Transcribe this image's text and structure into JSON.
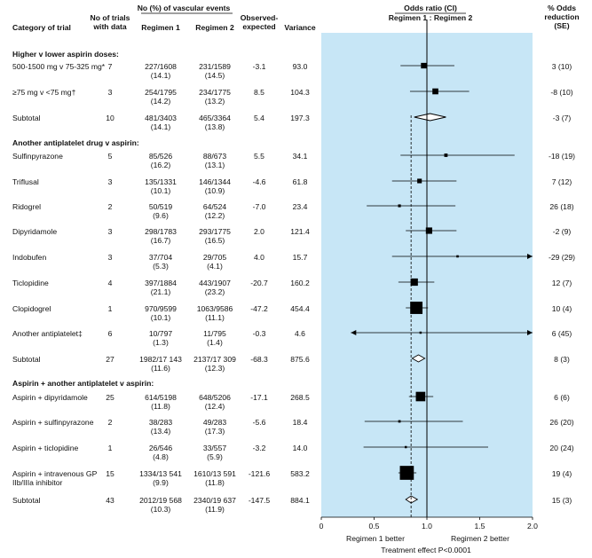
{
  "headers": {
    "category": "Category of trial",
    "trials": "No of trials\nwith data",
    "events_group": "No (%) of vascular events",
    "regimen1": "Regimen 1",
    "regimen2": "Regimen 2",
    "oe": "Observed-\nexpected",
    "variance": "Variance",
    "or_title": "Odds ratio (CI)",
    "or_sub": "Regimen 1 : Regimen 2",
    "reduction": "% Odds\nreduction\n(SE)"
  },
  "sections": [
    {
      "title": "Higher v lower aspirin doses:",
      "rows": [
        {
          "label": "500-1500 mg v 75-325 mg*",
          "trials": "7",
          "r1": "227/1608",
          "r1p": "(14.1)",
          "r2": "231/1589",
          "r2p": "(14.5)",
          "oe": "-3.1",
          "var": "93.0",
          "red": "3 (10)"
        },
        {
          "label": "≥75 mg v <75 mg†",
          "trials": "3",
          "r1": "254/1795",
          "r1p": "(14.2)",
          "r2": "234/1775",
          "r2p": "(13.2)",
          "oe": "8.5",
          "var": "104.3",
          "red": "-8 (10)"
        },
        {
          "label": "Subtotal",
          "trials": "10",
          "r1": "481/3403",
          "r1p": "(14.1)",
          "r2": "465/3364",
          "r2p": "(13.8)",
          "oe": "5.4",
          "var": "197.3",
          "red": "-3 (7)",
          "subtotal": true
        }
      ]
    },
    {
      "title": "Another antiplatelet drug v aspirin:",
      "rows": [
        {
          "label": "Sulfinpyrazone",
          "trials": "5",
          "r1": "85/526",
          "r1p": "(16.2)",
          "r2": "88/673",
          "r2p": "(13.1)",
          "oe": "5.5",
          "var": "34.1",
          "red": "-18 (19)"
        },
        {
          "label": "Triflusal",
          "trials": "3",
          "r1": "135/1331",
          "r1p": "(10.1)",
          "r2": "146/1344",
          "r2p": "(10.9)",
          "oe": "-4.6",
          "var": "61.8",
          "red": "7 (12)"
        },
        {
          "label": "Ridogrel",
          "trials": "2",
          "r1": "50/519",
          "r1p": "(9.6)",
          "r2": "64/524",
          "r2p": "(12.2)",
          "oe": "-7.0",
          "var": "23.4",
          "red": "26 (18)"
        },
        {
          "label": "Dipyridamole",
          "trials": "3",
          "r1": "298/1783",
          "r1p": "(16.7)",
          "r2": "293/1775",
          "r2p": "(16.5)",
          "oe": "2.0",
          "var": "121.4",
          "red": "-2 (9)"
        },
        {
          "label": "Indobufen",
          "trials": "3",
          "r1": "37/704",
          "r1p": "(5.3)",
          "r2": "29/705",
          "r2p": "(4.1)",
          "oe": "4.0",
          "var": "15.7",
          "red": "-29 (29)"
        },
        {
          "label": "Ticlopidine",
          "trials": "4",
          "r1": "397/1884",
          "r1p": "(21.1)",
          "r2": "443/1907",
          "r2p": "(23.2)",
          "oe": "-20.7",
          "var": "160.2",
          "red": "12 (7)"
        },
        {
          "label": "Clopidogrel",
          "trials": "1",
          "r1": "970/9599",
          "r1p": "(10.1)",
          "r2": "1063/9586",
          "r2p": "(11.1)",
          "oe": "-47.2",
          "var": "454.4",
          "red": "10 (4)"
        },
        {
          "label": "Another antiplatelet‡",
          "trials": "6",
          "r1": "10/797",
          "r1p": "(1.3)",
          "r2": "11/795",
          "r2p": "(1.4)",
          "oe": "-0.3",
          "var": "4.6",
          "red": "6 (45)"
        },
        {
          "label": "Subtotal",
          "trials": "27",
          "r1": "1982/17 143",
          "r1p": "(11.6)",
          "r2": "2137/17 309",
          "r2p": "(12.3)",
          "oe": "-68.3",
          "var": "875.6",
          "red": "8 (3)",
          "subtotal": true
        }
      ]
    },
    {
      "title": "Aspirin + another antiplatelet v aspirin:",
      "rows": [
        {
          "label": "Aspirin + dipyridamole",
          "trials": "25",
          "r1": "614/5198",
          "r1p": "(11.8)",
          "r2": "648/5206",
          "r2p": "(12.4)",
          "oe": "-17.1",
          "var": "268.5",
          "red": "6 (6)"
        },
        {
          "label": "Aspirin + sulfinpyrazone",
          "trials": "2",
          "r1": "38/283",
          "r1p": "(13.4)",
          "r2": "49/283",
          "r2p": "(17.3)",
          "oe": "-5.6",
          "var": "18.4",
          "red": "26 (20)"
        },
        {
          "label": "Aspirin + ticlopidine",
          "trials": "1",
          "r1": "26/546",
          "r1p": "(4.8)",
          "r2": "33/557",
          "r2p": "(5.9)",
          "oe": "-3.2",
          "var": "14.0",
          "red": "20 (24)"
        },
        {
          "label": "Aspirin + intravenous GP\nIIb/IIIa inhibitor",
          "trials": "15",
          "r1": "1334/13 541",
          "r1p": "(9.9)",
          "r2": "1610/13 591",
          "r2p": "(11.8)",
          "oe": "-121.6",
          "var": "583.2",
          "red": "19 (4)"
        },
        {
          "label": "Subtotal",
          "trials": "43",
          "r1": "2012/19 568",
          "r1p": "(10.3)",
          "r2": "2340/19 637",
          "r2p": "(11.9)",
          "oe": "-147.5",
          "var": "884.1",
          "red": "15 (3)",
          "subtotal": true
        }
      ]
    }
  ],
  "axis": {
    "ticks": [
      "0",
      "0.5",
      "1.0",
      "1.5",
      "2.0"
    ],
    "left_label": "Regimen 1 better",
    "right_label": "Regimen 2 better",
    "footer": "Treatment effect P<0.0001"
  },
  "chart_data": {
    "type": "forest",
    "xlim": [
      0,
      2
    ],
    "reference_line": 1.0,
    "pooled_line": 0.85,
    "colors": {
      "panel": "#c7e6f6",
      "marker": "#000000"
    },
    "points": [
      {
        "label": "500-1500 mg v 75-325 mg*",
        "or": 0.97,
        "lo": 0.75,
        "hi": 1.26,
        "weight": 93.0,
        "kind": "trial"
      },
      {
        "label": "≥75 mg v <75 mg†",
        "or": 1.08,
        "lo": 0.84,
        "hi": 1.4,
        "weight": 104.3,
        "kind": "trial"
      },
      {
        "label": "Subtotal",
        "or": 1.03,
        "lo": 0.88,
        "hi": 1.18,
        "kind": "subtotal"
      },
      {
        "label": "Sulfinpyrazone",
        "or": 1.18,
        "lo": 0.75,
        "hi": 1.83,
        "weight": 34.1,
        "kind": "trial"
      },
      {
        "label": "Triflusal",
        "or": 0.93,
        "lo": 0.67,
        "hi": 1.28,
        "weight": 61.8,
        "kind": "trial"
      },
      {
        "label": "Ridogrel",
        "or": 0.74,
        "lo": 0.43,
        "hi": 1.27,
        "weight": 23.4,
        "kind": "trial"
      },
      {
        "label": "Dipyridamole",
        "or": 1.02,
        "lo": 0.8,
        "hi": 1.28,
        "weight": 121.4,
        "kind": "trial"
      },
      {
        "label": "Indobufen",
        "or": 1.29,
        "lo": 0.67,
        "hi": 2.0,
        "weight": 15.7,
        "kind": "trial",
        "arrow_right": true
      },
      {
        "label": "Ticlopidine",
        "or": 0.88,
        "lo": 0.73,
        "hi": 1.07,
        "weight": 160.2,
        "kind": "trial"
      },
      {
        "label": "Clopidogrel",
        "or": 0.9,
        "lo": 0.8,
        "hi": 1.01,
        "weight": 454.4,
        "kind": "trial"
      },
      {
        "label": "Another antiplatelet‡",
        "or": 0.94,
        "lo": 0.28,
        "hi": 2.0,
        "weight": 4.6,
        "kind": "trial",
        "arrow_left": true,
        "arrow_right": true
      },
      {
        "label": "Subtotal",
        "or": 0.92,
        "lo": 0.86,
        "hi": 0.98,
        "kind": "subtotal"
      },
      {
        "label": "Aspirin + dipyridamole",
        "or": 0.94,
        "lo": 0.83,
        "hi": 1.06,
        "weight": 268.5,
        "kind": "trial"
      },
      {
        "label": "Aspirin + sulfinpyrazone",
        "or": 0.74,
        "lo": 0.41,
        "hi": 1.34,
        "weight": 18.4,
        "kind": "trial"
      },
      {
        "label": "Aspirin + ticlopidine",
        "or": 0.8,
        "lo": 0.4,
        "hi": 1.58,
        "weight": 14.0,
        "kind": "trial"
      },
      {
        "label": "Aspirin + intravenous GP IIb/IIIa inhibitor",
        "or": 0.81,
        "lo": 0.73,
        "hi": 0.9,
        "weight": 583.2,
        "kind": "trial"
      },
      {
        "label": "Subtotal",
        "or": 0.85,
        "lo": 0.8,
        "hi": 0.91,
        "kind": "subtotal"
      }
    ]
  }
}
